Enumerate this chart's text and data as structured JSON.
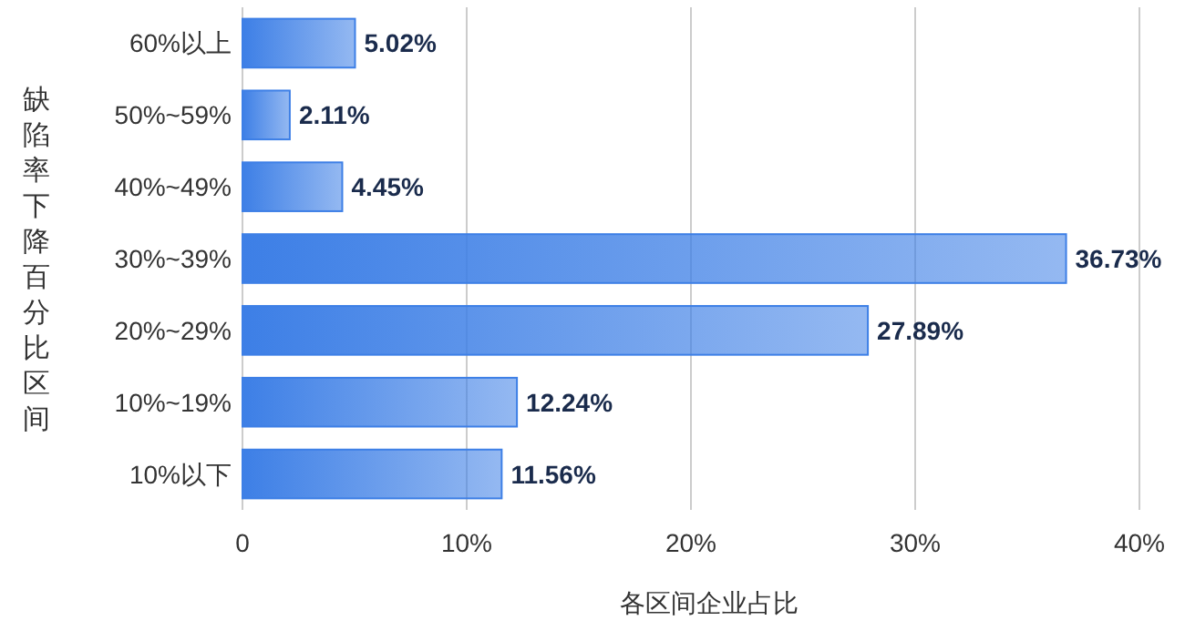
{
  "chart_data": {
    "type": "bar",
    "orientation": "horizontal",
    "xlabel": "各区间企业占比",
    "ylabel": "缺陷率下降百分比区间",
    "categories": [
      "60%以上",
      "50%~59%",
      "40%~49%",
      "30%~39%",
      "20%~29%",
      "10%~19%",
      "10%以下"
    ],
    "values": [
      5.02,
      2.11,
      4.45,
      36.73,
      27.89,
      12.24,
      11.56
    ],
    "value_labels": [
      "5.02%",
      "2.11%",
      "4.45%",
      "36.73%",
      "27.89%",
      "12.24%",
      "11.56%"
    ],
    "color": "#3d7fe6",
    "xlim": [
      0,
      40
    ],
    "xticks": [
      0,
      {
        "value": 10,
        "label": "10%"
      },
      {
        "value": 20,
        "label": "20%"
      },
      {
        "value": 30,
        "label": "30%"
      },
      {
        "value": 40,
        "label": "40%"
      }
    ],
    "grid": "x"
  }
}
